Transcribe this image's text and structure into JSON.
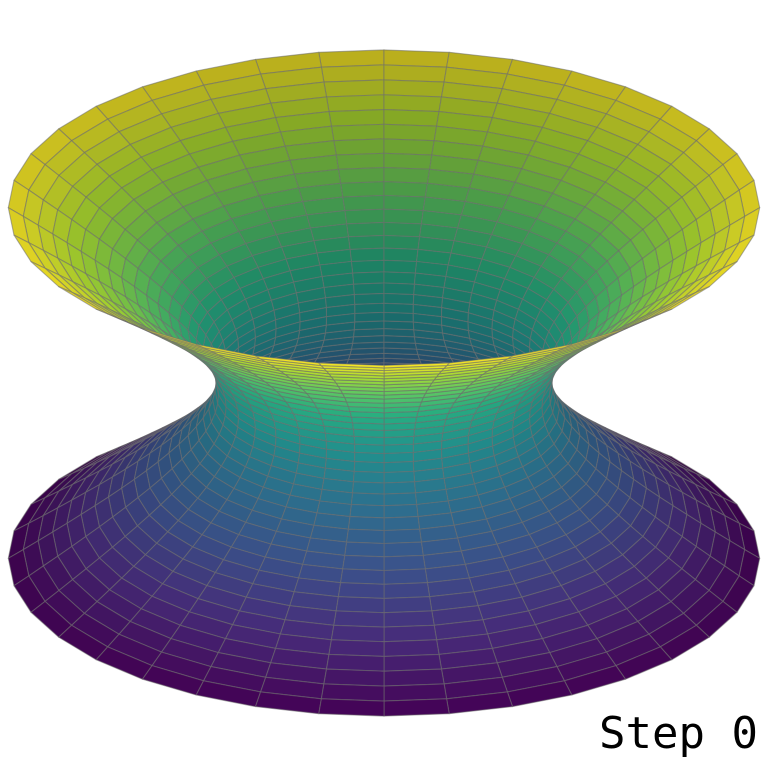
{
  "step_label": "Step 0",
  "surface": {
    "shape": "hyperboloid-of-one-sheet",
    "colormap": "viridis",
    "color_axis": "z",
    "grid": true
  },
  "colors": {
    "background": "#ffffff",
    "grid_line": "#8a8a8a",
    "text": "#000000"
  }
}
